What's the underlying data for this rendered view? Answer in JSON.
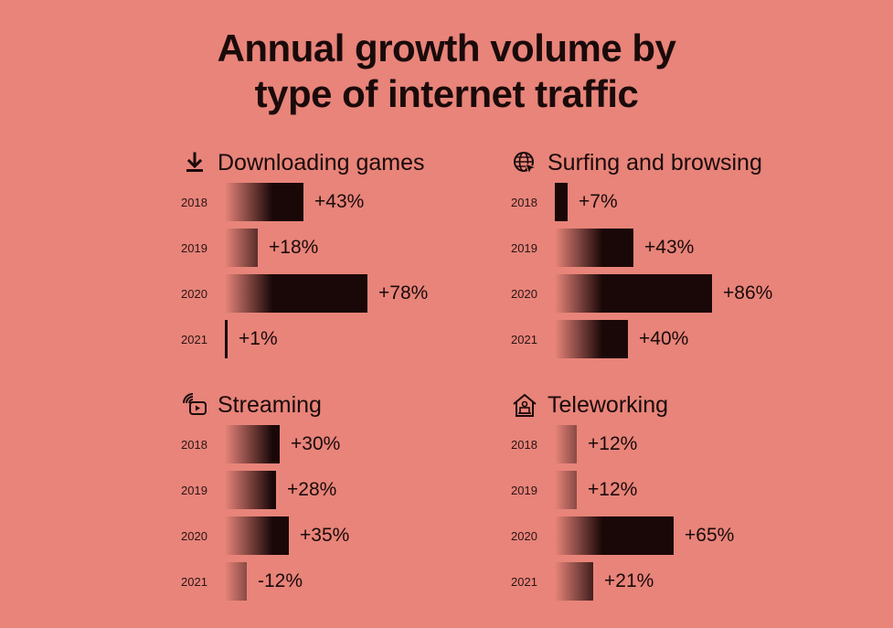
{
  "chart_data": {
    "type": "bar",
    "title": [
      "Annual growth volume by",
      "type of internet traffic"
    ],
    "unit": "%",
    "panels": [
      {
        "name": "Downloading games",
        "icon": "download-icon",
        "categories": [
          "2018",
          "2019",
          "2020",
          "2021"
        ],
        "values": [
          43,
          18,
          78,
          1
        ],
        "labels": [
          "+43%",
          "+18%",
          "+78%",
          "+1%"
        ]
      },
      {
        "name": "Surfing and browsing",
        "icon": "globe-cursor-icon",
        "categories": [
          "2018",
          "2019",
          "2020",
          "2021"
        ],
        "values": [
          7,
          43,
          86,
          40
        ],
        "labels": [
          "+7%",
          "+43%",
          "+86%",
          "+40%"
        ]
      },
      {
        "name": "Streaming",
        "icon": "streaming-play-icon",
        "categories": [
          "2018",
          "2019",
          "2020",
          "2021"
        ],
        "values": [
          30,
          28,
          35,
          -12
        ],
        "labels": [
          "+30%",
          "+28%",
          "+35%",
          "-12%"
        ]
      },
      {
        "name": "Teleworking",
        "icon": "home-office-icon",
        "categories": [
          "2018",
          "2019",
          "2020",
          "2021"
        ],
        "values": [
          12,
          12,
          65,
          21
        ],
        "labels": [
          "+12%",
          "+12%",
          "+65%",
          "+21%"
        ]
      }
    ]
  }
}
